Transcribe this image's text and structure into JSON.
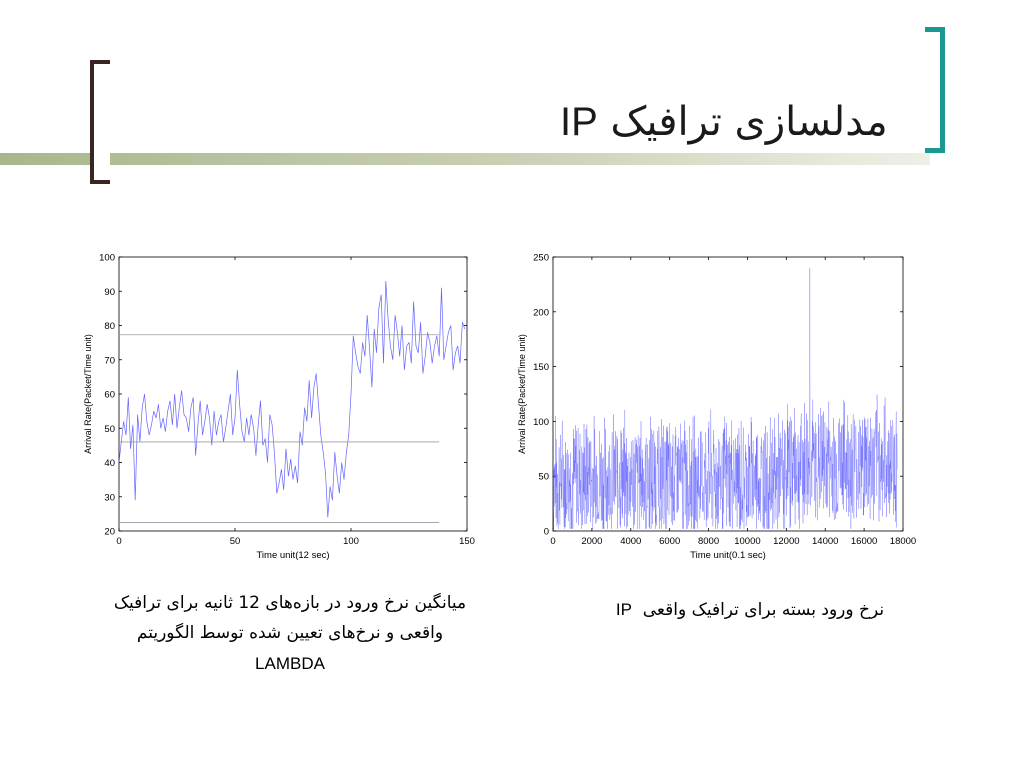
{
  "slide": {
    "title_fa": "مدلسازی ترافیک",
    "title_latin": "IP",
    "caption_left_line1": "میانگین نرخ ورود در بازه‌های 12 ثانیه برای ترافیک",
    "caption_left_line2": "واقعی و نرخ‌های تعیین شده توسط الگوریتم",
    "caption_left_line3": "LAMBDA",
    "caption_right_fa": "نرخ ورود بسته برای ترافیک واقعی",
    "caption_right_latin": "IP",
    "colors": {
      "accent_teal": "#1a9990",
      "bracket_brown": "#3b2520",
      "bar_green": "#a9b68d",
      "series_blue": "#4a4aff"
    }
  },
  "chart_data": [
    {
      "type": "line",
      "xlabel": "Time unit(12 sec)",
      "ylabel": "Arrival Rate(Packet/Time unit)",
      "xlim": [
        0,
        150
      ],
      "ylim": [
        20,
        100
      ],
      "xticks": [
        0,
        50,
        100,
        150
      ],
      "yticks": [
        20,
        30,
        40,
        50,
        60,
        70,
        80,
        90,
        100
      ],
      "grid": false,
      "series": [
        {
          "x": [
            0,
            1,
            2,
            3,
            4,
            5,
            6,
            7,
            8,
            9,
            10,
            11,
            12,
            13,
            14,
            15,
            16,
            17,
            18,
            19,
            20,
            21,
            22,
            23,
            24,
            25,
            26,
            27,
            28,
            29,
            30,
            31,
            32,
            33,
            34,
            35,
            36,
            37,
            38,
            39,
            40,
            41,
            42,
            43,
            44,
            45,
            46,
            47,
            48,
            49,
            50,
            51,
            52,
            53,
            54,
            55,
            56,
            57,
            58,
            59,
            60,
            61,
            62,
            63,
            64,
            65,
            66,
            67,
            68,
            69,
            70,
            71,
            72,
            73,
            74,
            75,
            76,
            77,
            78,
            79,
            80,
            81,
            82,
            83,
            84,
            85,
            86,
            87,
            88,
            89,
            90,
            91,
            92,
            93,
            94,
            95,
            96,
            97,
            98,
            99,
            100,
            101,
            102,
            103,
            104,
            105,
            106,
            107,
            108,
            109,
            110,
            111,
            112,
            113,
            114,
            115,
            116,
            117,
            118,
            119,
            120,
            121,
            122,
            123,
            124,
            125,
            126,
            127,
            128,
            129,
            130,
            131,
            132,
            133,
            134,
            135,
            136,
            137,
            138,
            139,
            140,
            141,
            142,
            143,
            144,
            145,
            146,
            147,
            148,
            149
          ],
          "values": [
            40,
            46,
            52,
            48,
            59,
            44,
            51,
            29,
            54,
            46,
            56,
            60,
            52,
            48,
            51,
            55,
            53,
            57,
            50,
            53,
            49,
            55,
            58,
            51,
            60,
            50,
            56,
            61,
            54,
            53,
            49,
            56,
            59,
            42,
            51,
            58,
            48,
            52,
            57,
            53,
            45,
            55,
            48,
            52,
            54,
            46,
            50,
            55,
            60,
            48,
            53,
            67,
            57,
            49,
            46,
            53,
            48,
            54,
            50,
            42,
            51,
            58,
            45,
            47,
            40,
            54,
            51,
            43,
            31,
            34,
            38,
            32,
            44,
            36,
            41,
            35,
            39,
            34,
            49,
            45,
            56,
            52,
            64,
            53,
            62,
            66,
            57,
            48,
            43,
            37,
            24,
            33,
            29,
            43,
            36,
            31,
            40,
            35,
            43,
            48,
            60,
            77,
            72,
            68,
            66,
            75,
            71,
            83,
            73,
            62,
            79,
            72,
            85,
            89,
            69,
            93,
            82,
            74,
            70,
            83,
            78,
            71,
            80,
            67,
            74,
            75,
            69,
            87,
            74,
            72,
            81,
            66,
            71,
            78,
            75,
            69,
            74,
            77,
            71,
            91,
            70,
            74,
            78,
            80,
            67,
            72,
            74,
            69,
            81,
            79
          ]
        },
        {
          "name": "",
          "y": 77.3,
          "kind": "horizontal"
        },
        {
          "name": "",
          "y": 46,
          "kind": "horizontal"
        },
        {
          "name": "",
          "y": 22.5,
          "kind": "horizontal"
        }
      ]
    },
    {
      "type": "line",
      "xlabel": "Time unit(0.1 sec)",
      "ylabel": "Arrival Rate(Packet/Time unit)",
      "xlim": [
        0,
        18000
      ],
      "ylim": [
        0,
        250
      ],
      "xticks": [
        0,
        2000,
        4000,
        6000,
        8000,
        10000,
        12000,
        14000,
        16000,
        18000
      ],
      "yticks": [
        0,
        50,
        100,
        150,
        200,
        250
      ],
      "grid": false,
      "series": [
        {
          "x_end": 17700,
          "phases": [
            [
              0,
              12000,
              48
            ],
            [
              12000,
              17700,
              62
            ]
          ],
          "spread": 55,
          "spike": [
            13200,
            240
          ]
        }
      ]
    }
  ]
}
